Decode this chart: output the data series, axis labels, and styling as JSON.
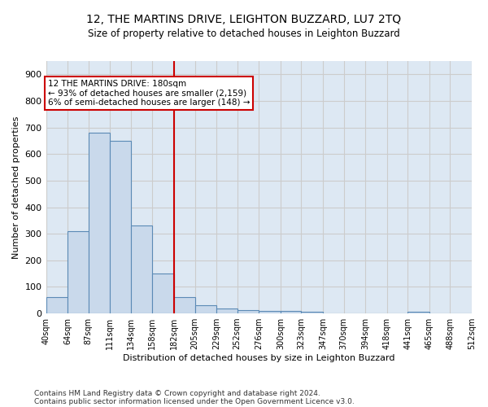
{
  "title": "12, THE MARTINS DRIVE, LEIGHTON BUZZARD, LU7 2TQ",
  "subtitle": "Size of property relative to detached houses in Leighton Buzzard",
  "xlabel": "Distribution of detached houses by size in Leighton Buzzard",
  "ylabel": "Number of detached properties",
  "bin_edges": [
    40,
    64,
    87,
    111,
    134,
    158,
    182,
    205,
    229,
    252,
    276,
    300,
    323,
    347,
    370,
    394,
    418,
    441,
    465,
    488,
    512
  ],
  "bar_heights": [
    60,
    310,
    680,
    650,
    330,
    150,
    60,
    30,
    18,
    12,
    10,
    8,
    5,
    0,
    0,
    0,
    0,
    5,
    0,
    0
  ],
  "bar_color": "#c9d9eb",
  "bar_edge_color": "#5b8ab5",
  "vline_x": 182,
  "vline_color": "#cc0000",
  "annotation_text": "12 THE MARTINS DRIVE: 180sqm\n← 93% of detached houses are smaller (2,159)\n6% of semi-detached houses are larger (148) →",
  "annotation_box_color": "#ffffff",
  "annotation_box_edge_color": "#cc0000",
  "ylim": [
    0,
    950
  ],
  "yticks": [
    0,
    100,
    200,
    300,
    400,
    500,
    600,
    700,
    800,
    900
  ],
  "grid_color": "#cccccc",
  "background_color": "#dde8f3",
  "footer_line1": "Contains HM Land Registry data © Crown copyright and database right 2024.",
  "footer_line2": "Contains public sector information licensed under the Open Government Licence v3.0.",
  "tick_labels": [
    "40sqm",
    "64sqm",
    "87sqm",
    "111sqm",
    "134sqm",
    "158sqm",
    "182sqm",
    "205sqm",
    "229sqm",
    "252sqm",
    "276sqm",
    "300sqm",
    "323sqm",
    "347sqm",
    "370sqm",
    "394sqm",
    "418sqm",
    "441sqm",
    "465sqm",
    "488sqm",
    "512sqm"
  ],
  "title_fontsize": 10,
  "subtitle_fontsize": 8.5,
  "ylabel_fontsize": 8,
  "xlabel_fontsize": 8
}
